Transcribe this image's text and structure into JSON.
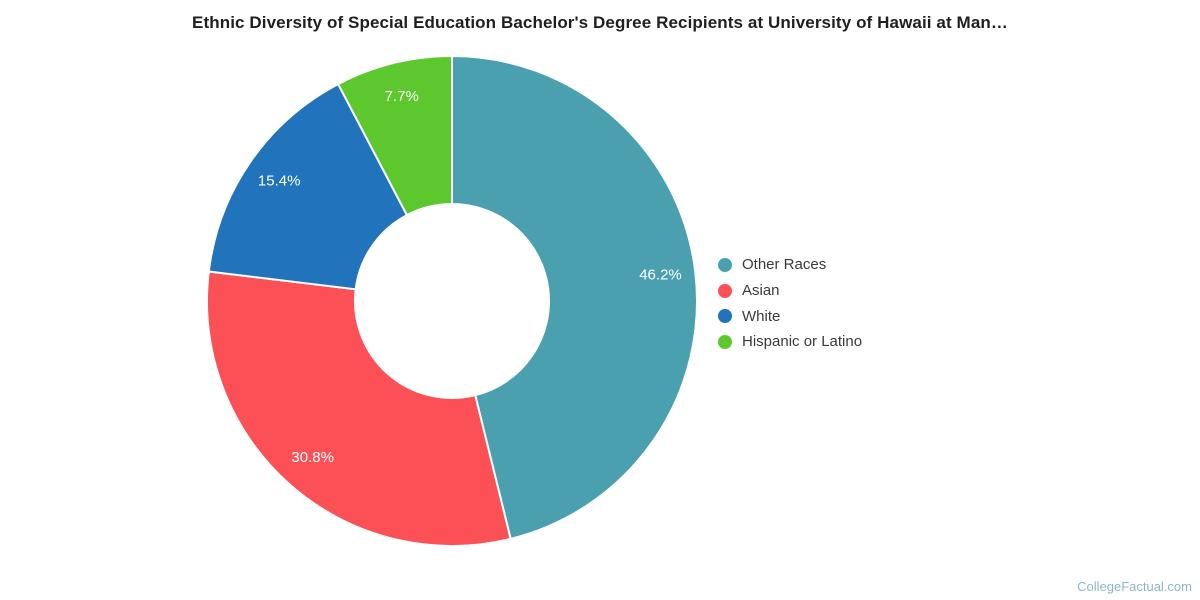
{
  "chart_data": {
    "type": "pie",
    "subtype": "donut",
    "title": "Ethnic Diversity of Special Education Bachelor's Degree Recipients at University of Hawaii at Man…",
    "categories": [
      "Other Races",
      "Asian",
      "White",
      "Hispanic or Latino"
    ],
    "values": [
      46.2,
      30.8,
      15.4,
      7.7
    ],
    "value_labels": [
      "46.2%",
      "30.8%",
      "15.4%",
      "7.7%"
    ],
    "slice_colors": [
      "#4AA0AF",
      "#FB5055",
      "#2173BB",
      "#5CC82D"
    ],
    "legend_position": "right",
    "legend_entries": [
      "Other Races",
      "Asian",
      "White",
      "Hispanic or Latino"
    ],
    "start_angle_deg": 0,
    "direction": "clockwise",
    "label_text_color": "#ffffff",
    "background_color": "#ffffff"
  },
  "watermark": {
    "text": "CollegeFactual.com",
    "color": "#8BB7C9"
  }
}
